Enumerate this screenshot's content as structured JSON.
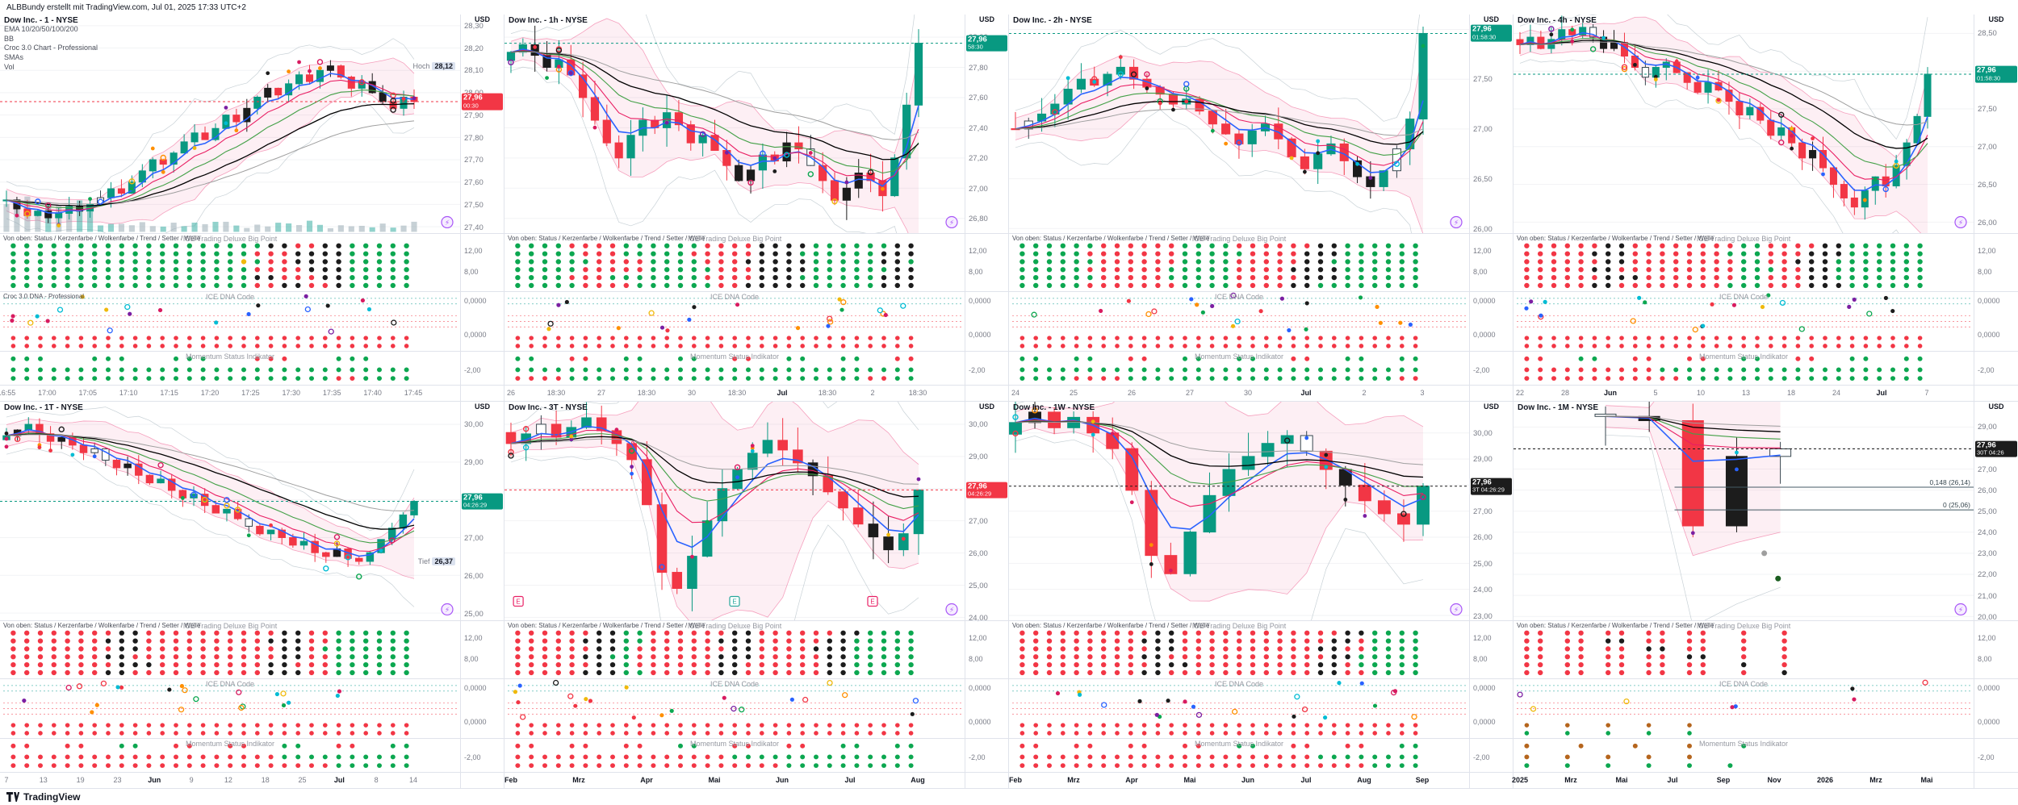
{
  "meta": {
    "header": "ALBBundy erstellt mit TradingView.com, Jul 01, 2025 17:33 UTC+2",
    "footer_brand": "TradingView"
  },
  "axis_unit": "USD",
  "icons": {
    "indicator_logo": "⚡"
  },
  "pane_titles": {
    "bigpoint": "ICE Trading Deluxe Big Point",
    "dna": "ICE DNA Code",
    "momentum": "Momentum Status Indikator",
    "bigpoint_legend": "Von oben: Status / Kerzenfarbe / Wolkenfarbe / Trend / Setter / Welle"
  },
  "pane_scales": {
    "bigpoint": [
      "12,00",
      "8,00"
    ],
    "dna": [
      "0,0000",
      "0,0000"
    ],
    "momentum": [
      "-2,00"
    ]
  },
  "colors": {
    "up": "#089981",
    "down": "#F23645",
    "neutral": "#1C1C1C",
    "ema10": "#2962FF",
    "ema20": "#E91E63",
    "ema50": "#43A047",
    "ema100": "#000000",
    "ema200": "#9E9E9E",
    "bb_fill": "rgba(233,30,99,0.07)",
    "bb_line": "#E91E63",
    "grid": "#F2F3F5"
  },
  "panels": [
    {
      "title": "Dow Inc. - 1 - NYSE",
      "legend": [
        "EMA 10/20/50/100/200",
        "BB",
        "Croc 3.0 Chart - Professional",
        "SMAs",
        "Vol"
      ],
      "price_min": 27.37,
      "price_max": 28.35,
      "price_ticks": [
        "28,30",
        "28,20",
        "28,10",
        "28,00",
        "27,90",
        "27,80",
        "27,70",
        "27,60",
        "27,50",
        "27,40"
      ],
      "badge": {
        "text": "27,96",
        "sub": "00:30",
        "color": "#F23645",
        "price": 27.96
      },
      "extra_badge": {
        "label": "Hoch",
        "value": "28,12",
        "price": 28.12
      },
      "time_ticks": [
        "16:55",
        "17:00",
        "17:05",
        "17:10",
        "17:15",
        "17:20",
        "17:25",
        "17:30",
        "17:35",
        "17:40",
        "17:45"
      ],
      "closes": [
        27.52,
        27.48,
        27.45,
        27.47,
        27.44,
        27.46,
        27.49,
        27.47,
        27.5,
        27.53,
        27.57,
        27.55,
        27.6,
        27.65,
        27.7,
        27.68,
        27.73,
        27.78,
        27.82,
        27.79,
        27.84,
        27.9,
        27.87,
        27.93,
        27.98,
        28.02,
        27.99,
        28.04,
        28.08,
        28.05,
        28.1,
        28.12,
        28.07,
        28.02,
        28.05,
        28.0,
        27.96,
        27.93,
        27.98,
        27.96
      ],
      "seed": 11,
      "has_volume": true,
      "marker_count": 30,
      "dna_legend": "Croc 3.0 DNA - Professional",
      "bigpoint_rows": [
        "gggggggggggggggggggkkrrkkggggg",
        "ggggggggggggggggggrrrkkkkggggg",
        "gggggggggggggggggygrrkkkkggggg",
        "ggggggggggggggggggrrrrkkkggggg",
        "ggggggggggggggggggkkrrrkkggggg",
        "ggggggggggggggggggrrkkrrkggggg"
      ],
      "dna_bottom_rows": [
        "rrrrrrrrrrrrrrrrrrrrrrrrrrrrrr",
        "rrrrrrrrrrrrrrrrrrrrrrrrrrrrrr"
      ],
      "momentum_rows": [
        "gggnnngggnnngggnnnrrrnnngggnnn",
        "gggggggggggggggggggggggggggggg",
        "ggggggggggggggggggggggggrrgggg"
      ]
    },
    {
      "title": "Dow Inc. - 1h - NYSE",
      "legend": [],
      "price_min": 26.7,
      "price_max": 28.15,
      "price_ticks": [
        "28,00",
        "27,80",
        "27,60",
        "27,40",
        "27,20",
        "27,00",
        "26,80"
      ],
      "badge": {
        "text": "27,96",
        "sub": "58:30",
        "color": "#089981",
        "price": 27.96
      },
      "time_ticks": [
        "26",
        "18:30",
        "27",
        "18:30",
        "30",
        "18:30",
        "Jul",
        "18:30",
        "2",
        "18:30"
      ],
      "closes": [
        27.9,
        27.95,
        27.88,
        27.8,
        27.85,
        27.75,
        27.6,
        27.45,
        27.3,
        27.2,
        27.35,
        27.45,
        27.4,
        27.5,
        27.42,
        27.3,
        27.35,
        27.25,
        27.15,
        27.05,
        27.12,
        27.22,
        27.18,
        27.3,
        27.26,
        27.15,
        27.05,
        26.92,
        27.0,
        27.1,
        27.05,
        26.95,
        27.2,
        27.55,
        27.96
      ],
      "seed": 23,
      "marker_count": 26,
      "bigpoint_rows": [
        "ggggrrrrggggggrrrrkkkkggggggkk",
        "gggggrrrgggggrrrrrkkkggggggkkk",
        "ggggggrrrrggggrrrkkkkkgggggkkg",
        "gggggrrrrrgggggrrrkkkkggggggkk",
        "ggggrrrgggggggrrrrkkkggggggkkk",
        "gggggrrrrggggggrrkkkkkgggggkkk"
      ],
      "dna_bottom_rows": [
        "rrrrrrrrrrrrrrrrrrrrrrrrrrrrrr",
        "rrrrrrrrrrrrrrrrrrrrrrrrrrrrrr"
      ],
      "momentum_rows": [
        "ggnnrrnnggnnggnnrrnnggnnggnnrr",
        "gggggggggggggggggggggggggggggg",
        "rrrrggggggggggggggggggggggrrgg"
      ]
    },
    {
      "title": "Dow Inc. - 2h - NYSE",
      "legend": [],
      "price_min": 25.95,
      "price_max": 28.15,
      "price_ticks": [
        "28,00",
        "27,50",
        "27,00",
        "26,50",
        "26,00"
      ],
      "badge": {
        "text": "27,96",
        "sub": "01:58:30",
        "color": "#089981",
        "price": 27.96
      },
      "time_ticks": [
        "24",
        "25",
        "26",
        "27",
        "30",
        "Jul",
        "2",
        "3"
      ],
      "closes": [
        27.0,
        27.08,
        27.15,
        27.25,
        27.4,
        27.5,
        27.44,
        27.55,
        27.62,
        27.5,
        27.42,
        27.35,
        27.25,
        27.3,
        27.18,
        27.05,
        26.95,
        26.85,
        26.98,
        27.05,
        26.9,
        26.72,
        26.6,
        26.75,
        26.85,
        26.68,
        26.52,
        26.42,
        26.58,
        26.8,
        27.1,
        27.96
      ],
      "seed": 37,
      "marker_count": 26,
      "bigpoint_rows": [
        "ggggggrrrrrrggggrrrrrrkkgggggg",
        "gggggrrrrrrrgggggrrrrkkkgggggg",
        "ggggggrrrrrrggggrrrrrkkggggggg",
        "gggggrrrrrrgggggrrrrkkkkgggggg",
        "ggggggrrrrrgggggrrrrrkkkgggggg",
        "gggggrrrrrrrggggrrrrkkgggggggg"
      ],
      "dna_bottom_rows": [
        "rrrrrrrrrrrrrrrrrrrrrrrrrrrrrr",
        "rrrrrrrrrrrrrrrrrrrrrrrrrrrrrr"
      ],
      "momentum_rows": [
        "ggnnggnnrrnnggnnggnnrrnnggnngg",
        "gggggggggggggggggggggggggggggg",
        "ggggrrrrggggggggggggggggggggrr"
      ]
    },
    {
      "title": "Dow Inc. - 4h - NYSE",
      "legend": [],
      "price_min": 25.85,
      "price_max": 28.75,
      "price_ticks": [
        "28,50",
        "28,00",
        "27,50",
        "27,00",
        "26,50",
        "26,00"
      ],
      "badge": {
        "text": "27,96",
        "sub": "01:58:30",
        "color": "#089981",
        "price": 27.96
      },
      "time_ticks": [
        "22",
        "28",
        "Jun",
        "5",
        "10",
        "13",
        "18",
        "24",
        "Jul",
        "7"
      ],
      "closes": [
        28.35,
        28.45,
        28.3,
        28.42,
        28.55,
        28.48,
        28.58,
        28.45,
        28.3,
        28.38,
        28.2,
        28.05,
        27.92,
        28.05,
        28.12,
        27.98,
        27.85,
        27.72,
        27.85,
        27.75,
        27.6,
        27.42,
        27.52,
        27.35,
        27.15,
        27.25,
        27.05,
        26.85,
        26.95,
        26.72,
        26.5,
        26.32,
        26.2,
        26.42,
        26.6,
        26.48,
        26.75,
        27.05,
        27.4,
        27.96
      ],
      "seed": 41,
      "marker_count": 28,
      "bigpoint_rows": [
        "rrrrrrkkrrrrrrrrggrrrrkkgggggg",
        "rrrrrkkkrrrrrrrgggrrrkkkgggggg",
        "rrrrrrkkrrrrrrrrggrrkkkggggggg",
        "rrrrrkkrrrrrrrrrgggrrkkggggggg",
        "rrrrrrkkkrrrrrrrggrrrkkggggggg",
        "rrrrrkkrrrrrrrrgggrrrkkkgggggg"
      ],
      "dna_bottom_rows": [
        "rrrrrrrrrrrrrrrrrrrrrrrrrrrrrr",
        "rrrrrrrrrrrrrrrrrrrrrrrrrrrrrr"
      ],
      "momentum_rows": [
        "rrnnggnnrrnnrrnnggnnrrnnggnngg",
        "rrrrrrrrrrgggggggggggggggggggg",
        "rrrrrrrrrrrrgggggggggggggggggg"
      ]
    },
    {
      "title": "Dow Inc. - 1T - NYSE",
      "legend": [],
      "price_min": 24.8,
      "price_max": 30.6,
      "price_ticks": [
        "30,00",
        "29,00",
        "28,00",
        "27,00",
        "26,00",
        "25,00"
      ],
      "badge": {
        "text": "27,96",
        "sub": "04:26:29",
        "color": "#089981",
        "price": 27.96
      },
      "extra_badge": {
        "label": "Tief",
        "value": "26,37",
        "price": 26.37
      },
      "time_ticks": [
        "7",
        "13",
        "19",
        "23",
        "Jun",
        "9",
        "12",
        "18",
        "25",
        "Jul",
        "8",
        "14"
      ],
      "closes": [
        29.7,
        29.85,
        30.0,
        29.75,
        29.55,
        29.65,
        29.45,
        29.25,
        29.35,
        29.05,
        28.85,
        28.95,
        28.65,
        28.45,
        28.55,
        28.25,
        28.05,
        28.15,
        27.85,
        27.65,
        27.75,
        27.5,
        27.3,
        27.1,
        27.2,
        27.0,
        26.8,
        26.9,
        26.6,
        26.5,
        26.7,
        26.45,
        26.37,
        26.6,
        26.95,
        27.25,
        27.6,
        27.96
      ],
      "seed": 53,
      "marker_count": 26,
      "bigpoint_rows": [
        "rrrrrrrrkkrrrrrrrrrrkkrrgggggg",
        "rrrrrrrkkkrrrrrrrrrkkkrrgggggg",
        "rrrrrrrrkkrrrrrrrrrrkkrggggggg",
        "rrrrrrrkkrrrrrrrrrrrkkrrgggggg",
        "rrrrrrrrkkkrrrrrrrrkkrrrgggggg",
        "rrrrrrrkkrrrrrrrrrrkkkrrgggggg"
      ],
      "dna_bottom_rows": [
        "rrrrrrrrrrrrrrrrrrrrrrrrrrrrrr",
        "rrrrrrrrrrrrrrrrrrrrrrrrrrrrrr"
      ],
      "momentum_rows": [
        "rrnnrrnnggnnrrnnrrnnggnnrrnngg",
        "rrrrrrrrrrrrrrrrrrrrgggggggggg",
        "rrrrrrrrrrrrrrrrrrrrrrrrgggggg"
      ]
    },
    {
      "title": "Dow Inc. - 3T - NYSE",
      "legend": [],
      "price_min": 23.9,
      "price_max": 30.7,
      "price_ticks": [
        "30,00",
        "29,00",
        "28,00",
        "27,00",
        "26,00",
        "25,00",
        "24,00"
      ],
      "badge": {
        "text": "27,96",
        "sub": "04:26:29",
        "color": "#F23645",
        "price": 27.96
      },
      "time_ticks": [
        "Feb",
        "Mrz",
        "Apr",
        "Mai",
        "Jun",
        "Jul",
        "Aug"
      ],
      "closes": [
        29.4,
        29.7,
        30.0,
        29.6,
        29.9,
        30.2,
        29.8,
        29.4,
        28.9,
        27.5,
        25.4,
        24.9,
        25.9,
        27.0,
        28.0,
        28.6,
        29.1,
        29.5,
        29.2,
        28.8,
        28.4,
        27.9,
        27.4,
        26.9,
        26.5,
        26.1,
        26.6,
        27.96
      ],
      "seed": 67,
      "marker_count": 22,
      "events": [
        {
          "x": 0.03,
          "color": "#E91E63",
          "label": "E"
        },
        {
          "x": 0.5,
          "color": "#26A69A",
          "label": "E"
        },
        {
          "x": 0.8,
          "color": "#E91E63",
          "label": "E"
        }
      ],
      "bigpoint_rows": [
        "rrrrrrkkggrrrrrrkkrrrrrrkkgggg",
        "rrrrrkkkggrrrrrkkkrrrrrkkggggg",
        "rrrrrrkkgrrrrrrrkkrrrrkkkggggg",
        "rrrrrkkggrrrrrrkkkrrrrrkkggggg",
        "rrrrrrkkgrrrrrrkkrrrrrrkkggggg",
        "rrrrrkkkggrrrrrkkrrrrrrkkggggg"
      ],
      "dna_bottom_rows": [
        "rrrrrrrrrrrrrrrrrrrrrrrrrrrrrr",
        "rrrrrrrrrrrrrrrrrrrrrrrrrrrrrr"
      ],
      "momentum_rows": [
        "rrnnrrnnrrnnggnnrrnnrrnnggnngg",
        "rrrrrrrrrrrrrrrrgggggggggggggg",
        "rrrrrrrrrrrrrrrrrrrrgggggggggg"
      ]
    },
    {
      "title": "Dow Inc. - 1W - NYSE",
      "legend": [],
      "price_min": 22.8,
      "price_max": 31.2,
      "price_ticks": [
        "30,00",
        "29,00",
        "28,00",
        "27,00",
        "26,00",
        "25,00",
        "24,00",
        "23,00"
      ],
      "badge": {
        "text": "27,96",
        "sub": "3T 04:26:29",
        "color": "#1C1C1C",
        "price": 27.96
      },
      "time_ticks": [
        "Feb",
        "Mrz",
        "Apr",
        "Mai",
        "Jun",
        "Jul",
        "Aug",
        "Sep"
      ],
      "closes": [
        30.4,
        30.8,
        30.2,
        30.6,
        30.0,
        29.4,
        27.8,
        25.3,
        24.6,
        26.2,
        27.6,
        28.6,
        29.1,
        29.6,
        29.9,
        29.3,
        28.6,
        28.0,
        27.4,
        26.9,
        26.5,
        27.96
      ],
      "seed": 79,
      "marker_count": 18,
      "bigpoint_rows": [
        "rrrrrrrrrrkkrrrrrrrrrrrrkkgggg",
        "rrrrrrrrrkkkrrrrrrrrrrrkkrgggg",
        "rrrrrrrrrrkkrrrrrrrrrrkkrrgggg",
        "rrrrrrrrrkkrrrrrrrrrrrrkkggggg",
        "rrrrrrrrrrkkkrrrrrrrrrkkrggggg",
        "rrrrrrrrrkkrrrrrrrrrrrkkrrgggg"
      ],
      "dna_bottom_rows": [
        "rrrrrrrrrrrrrrrrrrrrrrrrrrrrrr",
        "rrrrrrrrrrrrrrrrrrrrrrrrrrrrrr"
      ],
      "momentum_rows": [
        "rrnnrrnnrrnnrrnnggnnrrnnrrnngg",
        "rrrrrrrrrrrrrrrrrrrrrrgggggggg",
        "rrrrrrrrrrrrrrrrrrrrrrrrrrgggg"
      ]
    },
    {
      "title": "Dow Inc. - 1M - NYSE",
      "legend": [],
      "price_min": 19.8,
      "price_max": 30.2,
      "price_ticks": [
        "29,00",
        "28,00",
        "27,00",
        "26,00",
        "25,00",
        "24,00",
        "23,00",
        "22,00",
        "21,00",
        "20,00"
      ],
      "badge": {
        "text": "27,96",
        "sub": "30T 04:26",
        "color": "#1C1C1C",
        "price": 27.96
      },
      "time_ticks": [
        "2025",
        "Mrz",
        "Mai",
        "Jul",
        "Sep",
        "Nov",
        "2026",
        "Mrz",
        "Mai"
      ],
      "closes": [
        29.5,
        29.3,
        24.3,
        27.6,
        27.96
      ],
      "candle_colors": [
        "w",
        "k",
        "r",
        "k",
        "w"
      ],
      "x_range": [
        0.2,
        0.58
      ],
      "candle_width": 26,
      "seed": 97,
      "marker_count": 3,
      "dna_scatter": 8,
      "markers_explicit": [
        [
          0.545,
          23.0,
          "#9E9E9E"
        ],
        [
          0.575,
          21.8,
          "#1B5E20"
        ]
      ],
      "fib_lines": [
        {
          "label": "0,148 (26,14)",
          "price": 26.14
        },
        {
          "label": "0 (25,06)",
          "price": 25.06
        }
      ],
      "bigpoint_rows": [
        "rrnrrnrrnrrnrrnnrnnrnnnnnnnnnn",
        "rrnrrnkknrrnrrnnrnnrnnnnnnnnnn",
        "rrnrrnrrnkknrrnnrnnrnnnnnnnnnn",
        "rrnrrnrrnrrnkknnrnnrnnnnnnnnnn",
        "rrnrrnrrnrrnrrnnknnrnnnnnnnnnn",
        "rrnrrnrrnrrnrrnnrnnknnnnnnnnnn"
      ],
      "dna_bottom_rows": [
        "onnonnonnonnonnnnnnnnnnnnnnnnn",
        "gnngnngnngnngnnnnnnnnnnnnnnnnn"
      ],
      "momentum_rows": [
        "onnnonnnonnnonnngnnnnnnnnnnnnn",
        "onnonnonnonnonnnnnnnnnnnnnnnnn",
        "gnngnngnngnngnngnnnnnnnnnnnnnn"
      ]
    }
  ]
}
